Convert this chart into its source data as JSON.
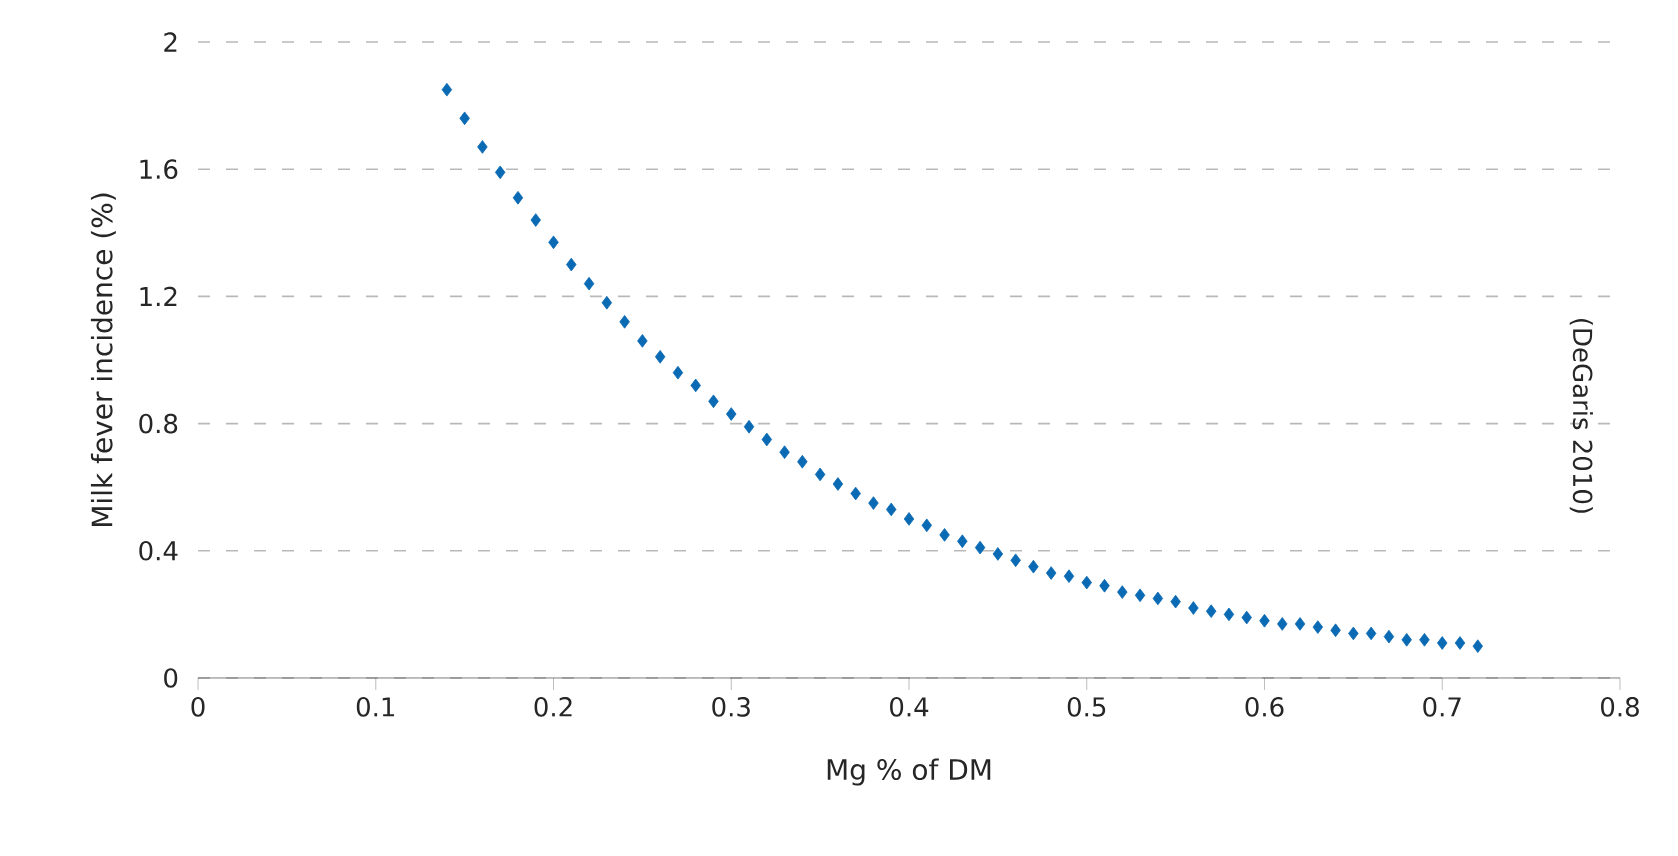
{
  "chart_data": {
    "type": "scatter",
    "xlabel": "Mg % of DM",
    "ylabel": "Milk fever incidence (%)",
    "x": [
      0.14,
      0.15,
      0.16,
      0.17,
      0.18,
      0.19,
      0.2,
      0.21,
      0.22,
      0.23,
      0.24,
      0.25,
      0.26,
      0.27,
      0.28,
      0.29,
      0.3,
      0.31,
      0.32,
      0.33,
      0.34,
      0.35,
      0.36,
      0.37,
      0.38,
      0.39,
      0.4,
      0.41,
      0.42,
      0.43,
      0.44,
      0.45,
      0.46,
      0.47,
      0.48,
      0.49,
      0.5,
      0.51,
      0.52,
      0.53,
      0.54,
      0.55,
      0.56,
      0.57,
      0.58,
      0.59,
      0.6,
      0.61,
      0.62,
      0.63,
      0.64,
      0.65,
      0.66,
      0.67,
      0.68,
      0.69,
      0.7,
      0.71,
      0.72
    ],
    "values": [
      1.85,
      1.76,
      1.67,
      1.59,
      1.51,
      1.44,
      1.37,
      1.3,
      1.24,
      1.18,
      1.12,
      1.06,
      1.01,
      0.96,
      0.92,
      0.87,
      0.83,
      0.79,
      0.75,
      0.71,
      0.68,
      0.64,
      0.61,
      0.58,
      0.55,
      0.53,
      0.5,
      0.48,
      0.45,
      0.43,
      0.41,
      0.39,
      0.37,
      0.35,
      0.33,
      0.32,
      0.3,
      0.29,
      0.27,
      0.26,
      0.25,
      0.24,
      0.22,
      0.21,
      0.2,
      0.19,
      0.18,
      0.17,
      0.17,
      0.16,
      0.15,
      0.14,
      0.14,
      0.13,
      0.12,
      0.12,
      0.11,
      0.11,
      0.1
    ],
    "color": "#0a6ab4",
    "marker": "diamond",
    "xlim": [
      0,
      0.8
    ],
    "xticks": [
      0,
      0.1,
      0.2,
      0.3,
      0.4,
      0.5,
      0.6,
      0.7,
      0.8
    ],
    "ylim": [
      0,
      2
    ],
    "yticks": [
      0,
      0.4,
      0.8,
      1.2,
      1.6,
      2
    ],
    "grid": "y",
    "annotations": [
      "(DeGaris 2010)"
    ]
  }
}
